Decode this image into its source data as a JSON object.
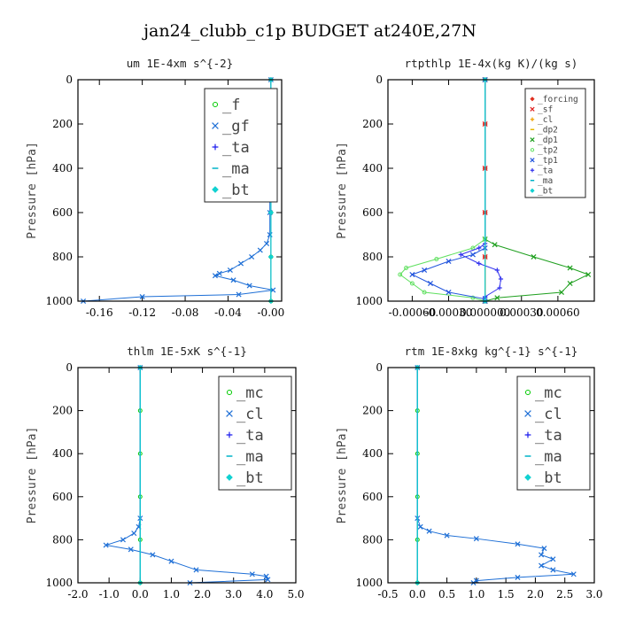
{
  "figure": {
    "title": "jan24_clubb_c1p  BUDGET at240E,27N"
  },
  "chart_data": [
    {
      "type": "line",
      "title": "um  1E-4xm s^{-2}",
      "ylabel": "Pressure [hPa]",
      "xlim": [
        -0.18,
        0.01
      ],
      "ylim": [
        1000,
        0
      ],
      "xticks": [
        -0.16,
        -0.12,
        -0.08,
        -0.04,
        0.0
      ],
      "xticklabels": [
        "-0.16",
        "-0.12",
        "-0.08",
        "-0.04",
        "-0.00"
      ],
      "yticks": [
        0,
        200,
        400,
        600,
        800,
        1000
      ],
      "legend_position": "top-right",
      "legend_size": "large",
      "series": [
        {
          "name": "_f",
          "color": "#00cc00",
          "marker": "circle",
          "points": [
            [
              0.0,
              0
            ],
            [
              0.0,
              200
            ],
            [
              0.0,
              400
            ],
            [
              0.0,
              600
            ],
            [
              0.0,
              800
            ],
            [
              0.0,
              1000
            ]
          ]
        },
        {
          "name": "_gf",
          "color": "#1e6fd6",
          "marker": "x",
          "points": [
            [
              0.0,
              0
            ],
            [
              0.0,
              100
            ],
            [
              -0.001,
              200
            ],
            [
              -0.0015,
              230
            ],
            [
              -0.001,
              280
            ],
            [
              0.0,
              330
            ],
            [
              -0.001,
              400
            ],
            [
              -0.001,
              500
            ],
            [
              -0.001,
              600
            ],
            [
              -0.001,
              700
            ],
            [
              -0.004,
              740
            ],
            [
              -0.01,
              770
            ],
            [
              -0.018,
              800
            ],
            [
              -0.028,
              830
            ],
            [
              -0.038,
              860
            ],
            [
              -0.048,
              875
            ],
            [
              -0.052,
              885
            ],
            [
              -0.035,
              905
            ],
            [
              -0.02,
              930
            ],
            [
              0.002,
              950
            ],
            [
              -0.03,
              970
            ],
            [
              -0.12,
              980
            ],
            [
              -0.175,
              1000
            ]
          ]
        },
        {
          "name": "_ta",
          "color": "#1a1aee",
          "marker": "plus",
          "points": [
            [
              0.0,
              0
            ],
            [
              0.0,
              200
            ],
            [
              0.0,
              400
            ],
            [
              0.0,
              600
            ],
            [
              0.0,
              800
            ],
            [
              0.0,
              1000
            ]
          ]
        },
        {
          "name": "_ma",
          "color": "#00b3c8",
          "marker": "dash",
          "points": [
            [
              0.0,
              0
            ],
            [
              0.0,
              200
            ],
            [
              0.0,
              400
            ],
            [
              0.0,
              600
            ],
            [
              0.0,
              800
            ],
            [
              0.0,
              1000
            ]
          ]
        },
        {
          "name": "_bt",
          "color": "#11d1d1",
          "marker": "diamond",
          "points": [
            [
              0.0,
              0
            ],
            [
              0.0,
              200
            ],
            [
              0.0,
              400
            ],
            [
              0.0,
              600
            ],
            [
              0.0,
              800
            ],
            [
              0.0,
              1000
            ]
          ]
        }
      ]
    },
    {
      "type": "line",
      "title": "rtpthlp  1E-4x(kg K)/(kg s)",
      "ylabel": "Pressure [hPa]",
      "xlim": [
        -0.0008,
        0.0009
      ],
      "ylim": [
        1000,
        0
      ],
      "xticks": [
        -0.0006,
        -0.0003,
        0.0,
        0.0003,
        0.0006
      ],
      "xticklabels": [
        "-0.00060",
        "-0.00030",
        "0.000000",
        "0.00030",
        "0.00060"
      ],
      "yticks": [
        0,
        200,
        400,
        600,
        800,
        1000
      ],
      "legend_position": "top-right",
      "legend_size": "small",
      "series": [
        {
          "name": "_forcing",
          "color": "#e03020",
          "marker": "diamond",
          "points": [
            [
              0.0,
              0
            ],
            [
              0.0,
              200
            ],
            [
              0.0,
              400
            ],
            [
              0.0,
              600
            ],
            [
              0.0,
              800
            ],
            [
              0.0,
              1000
            ]
          ]
        },
        {
          "name": "_sf",
          "color": "#e02020",
          "marker": "x",
          "points": [
            [
              0.0,
              0
            ],
            [
              0.0,
              200
            ],
            [
              0.0,
              400
            ],
            [
              0.0,
              600
            ],
            [
              0.0,
              800
            ],
            [
              0.0,
              1000
            ]
          ]
        },
        {
          "name": "_cl",
          "color": "#f0a000",
          "marker": "plus",
          "points": [
            [
              0.0,
              0
            ],
            [
              0.0,
              1000
            ]
          ]
        },
        {
          "name": "_dp2",
          "color": "#e8b800",
          "marker": "dash",
          "points": [
            [
              0.0,
              0
            ],
            [
              0.0,
              1000
            ]
          ]
        },
        {
          "name": "_dp1",
          "color": "#20a020",
          "marker": "x",
          "points": [
            [
              0.0,
              0
            ],
            [
              0.0,
              720
            ],
            [
              8e-05,
              745
            ],
            [
              0.0004,
              800
            ],
            [
              0.0007,
              850
            ],
            [
              0.00085,
              880
            ],
            [
              0.0007,
              920
            ],
            [
              0.00063,
              960
            ],
            [
              0.0001,
              985
            ],
            [
              0.0,
              1000
            ]
          ]
        },
        {
          "name": "_tp2",
          "color": "#60e060",
          "marker": "circle",
          "points": [
            [
              0.0,
              0
            ],
            [
              0.0,
              720
            ],
            [
              -0.0001,
              760
            ],
            [
              -0.0004,
              810
            ],
            [
              -0.00065,
              850
            ],
            [
              -0.0007,
              880
            ],
            [
              -0.0006,
              920
            ],
            [
              -0.0005,
              960
            ],
            [
              -0.0001,
              985
            ],
            [
              0.0,
              1000
            ]
          ]
        },
        {
          "name": "_tp1",
          "color": "#2255dd",
          "marker": "x",
          "points": [
            [
              0.0,
              0
            ],
            [
              0.0,
              760
            ],
            [
              -0.0001,
              790
            ],
            [
              -0.0003,
              820
            ],
            [
              -0.0005,
              860
            ],
            [
              -0.0006,
              880
            ],
            [
              -0.00045,
              920
            ],
            [
              -0.0003,
              960
            ],
            [
              0.0,
              990
            ],
            [
              0.0,
              1000
            ]
          ]
        },
        {
          "name": "_ta",
          "color": "#3333ee",
          "marker": "plus",
          "points": [
            [
              0.0,
              0
            ],
            [
              0.0,
              740
            ],
            [
              -5e-05,
              760
            ],
            [
              -0.0002,
              790
            ],
            [
              -5e-05,
              830
            ],
            [
              0.0001,
              860
            ],
            [
              0.00013,
              900
            ],
            [
              0.00012,
              940
            ],
            [
              0.0,
              980
            ],
            [
              0.0,
              1000
            ]
          ]
        },
        {
          "name": "_ma",
          "color": "#00b3c8",
          "marker": "dash",
          "points": [
            [
              0.0,
              0
            ],
            [
              0.0,
              1000
            ]
          ]
        },
        {
          "name": "_bt",
          "color": "#11d1d1",
          "marker": "diamond",
          "points": [
            [
              0.0,
              0
            ],
            [
              0.0,
              1000
            ]
          ]
        }
      ]
    },
    {
      "type": "line",
      "title": "thlm  1E-5xK s^{-1}",
      "ylabel": "Pressure [hPa]",
      "xlim": [
        -2.0,
        5.0
      ],
      "ylim": [
        1000,
        0
      ],
      "xticks": [
        -2.0,
        -1.0,
        0.0,
        1.0,
        2.0,
        3.0,
        4.0,
        5.0
      ],
      "xticklabels": [
        "-2.0",
        "-1.0",
        "0.0",
        "1.0",
        "2.0",
        "3.0",
        "4.0",
        "5.0"
      ],
      "yticks": [
        0,
        200,
        400,
        600,
        800,
        1000
      ],
      "legend_position": "top-right",
      "legend_size": "large",
      "series": [
        {
          "name": "_mc",
          "color": "#00cc00",
          "marker": "circle",
          "points": [
            [
              0.0,
              0
            ],
            [
              0.0,
              200
            ],
            [
              0.0,
              400
            ],
            [
              0.0,
              600
            ],
            [
              0.0,
              800
            ],
            [
              0.0,
              1000
            ]
          ]
        },
        {
          "name": "_cl",
          "color": "#1e6fd6",
          "marker": "x",
          "points": [
            [
              0.0,
              0
            ],
            [
              0.0,
              700
            ],
            [
              -0.05,
              740
            ],
            [
              -0.2,
              770
            ],
            [
              -0.55,
              800
            ],
            [
              -1.1,
              825
            ],
            [
              -0.3,
              845
            ],
            [
              0.4,
              870
            ],
            [
              1.0,
              900
            ],
            [
              1.8,
              940
            ],
            [
              3.6,
              960
            ],
            [
              4.05,
              970
            ],
            [
              4.1,
              985
            ],
            [
              1.6,
              1000
            ]
          ]
        },
        {
          "name": "_ta",
          "color": "#1a1aee",
          "marker": "plus",
          "points": [
            [
              0.0,
              0
            ],
            [
              0.0,
              1000
            ]
          ]
        },
        {
          "name": "_ma",
          "color": "#00b3c8",
          "marker": "dash",
          "points": [
            [
              0.0,
              0
            ],
            [
              0.0,
              1000
            ]
          ]
        },
        {
          "name": "_bt",
          "color": "#11d1d1",
          "marker": "diamond",
          "points": [
            [
              0.0,
              0
            ],
            [
              0.0,
              1000
            ]
          ]
        }
      ]
    },
    {
      "type": "line",
      "title": "rtm  1E-8xkg kg^{-1} s^{-1}",
      "ylabel": "Pressure [hPa]",
      "xlim": [
        -0.5,
        3.0
      ],
      "ylim": [
        1000,
        0
      ],
      "xticks": [
        -0.5,
        0.0,
        0.5,
        1.0,
        1.5,
        2.0,
        2.5,
        3.0
      ],
      "xticklabels": [
        "-0.5",
        "0.0",
        "0.5",
        "1.0",
        "1.5",
        "2.0",
        "2.5",
        "3.0"
      ],
      "yticks": [
        0,
        200,
        400,
        600,
        800,
        1000
      ],
      "legend_position": "top-right",
      "legend_size": "large",
      "series": [
        {
          "name": "_mc",
          "color": "#00cc00",
          "marker": "circle",
          "points": [
            [
              0.0,
              0
            ],
            [
              0.0,
              200
            ],
            [
              0.0,
              400
            ],
            [
              0.0,
              600
            ],
            [
              0.0,
              800
            ],
            [
              0.0,
              1000
            ]
          ]
        },
        {
          "name": "_cl",
          "color": "#1e6fd6",
          "marker": "x",
          "points": [
            [
              0.0,
              0
            ],
            [
              0.0,
              700
            ],
            [
              0.05,
              740
            ],
            [
              0.2,
              760
            ],
            [
              0.5,
              780
            ],
            [
              1.0,
              795
            ],
            [
              1.7,
              820
            ],
            [
              2.15,
              840
            ],
            [
              2.1,
              870
            ],
            [
              2.3,
              890
            ],
            [
              2.1,
              920
            ],
            [
              2.3,
              940
            ],
            [
              2.65,
              960
            ],
            [
              1.7,
              975
            ],
            [
              1.0,
              990
            ],
            [
              0.95,
              1000
            ]
          ]
        },
        {
          "name": "_ta",
          "color": "#1a1aee",
          "marker": "plus",
          "points": [
            [
              0.0,
              0
            ],
            [
              0.0,
              1000
            ]
          ]
        },
        {
          "name": "_ma",
          "color": "#00b3c8",
          "marker": "dash",
          "points": [
            [
              0.0,
              0
            ],
            [
              0.0,
              1000
            ]
          ]
        },
        {
          "name": "_bt",
          "color": "#11d1d1",
          "marker": "diamond",
          "points": [
            [
              0.0,
              0
            ],
            [
              0.0,
              1000
            ]
          ]
        }
      ]
    }
  ]
}
